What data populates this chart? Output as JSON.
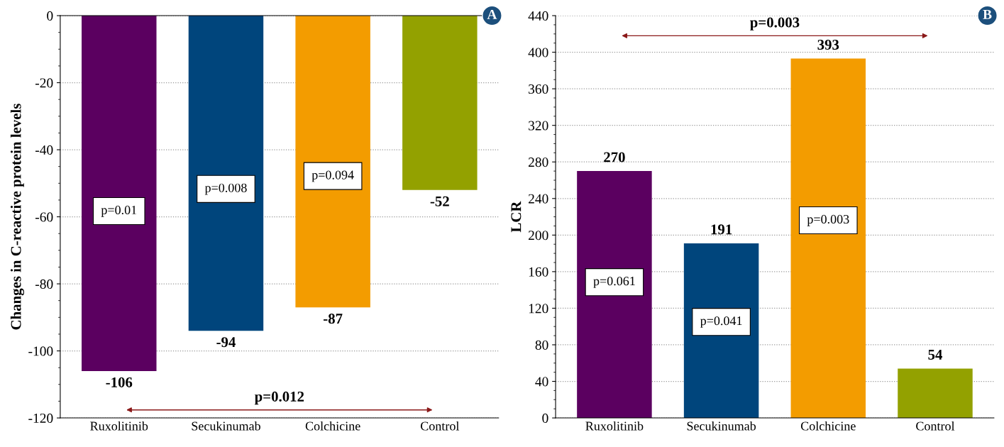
{
  "chart_data": [
    {
      "type": "bar",
      "ylabel": "Changes in C-reactive protein levels",
      "categories": [
        "Ruxolitinib",
        "Secukinumab",
        "Colchicine",
        "Control"
      ],
      "values": [
        -106,
        -94,
        -87,
        -52
      ],
      "colors": [
        "#5b0060",
        "#00457c",
        "#f39c00",
        "#93a100"
      ],
      "ylim": [
        -120,
        0
      ],
      "yticks": [
        -120,
        -100,
        -80,
        -60,
        -40,
        -20,
        0
      ],
      "grid": "y",
      "data_labels": true,
      "annotations": [
        "p=0.01",
        "p=0.008",
        "p=0.094",
        "p=0.012",
        "A"
      ]
    },
    {
      "type": "bar",
      "ylabel": "LCR",
      "categories": [
        "Ruxolitinib",
        "Secukinumab",
        "Colchicine",
        "Control"
      ],
      "values": [
        270,
        191,
        393,
        54
      ],
      "colors": [
        "#5b0060",
        "#00457c",
        "#f39c00",
        "#93a100"
      ],
      "ylim": [
        0,
        440
      ],
      "yticks": [
        0,
        40,
        80,
        120,
        160,
        200,
        240,
        280,
        320,
        360,
        400,
        440
      ],
      "grid": "y",
      "data_labels": true,
      "annotations": [
        "p=0.061",
        "p=0.041",
        "p=0.003",
        "p=0.003",
        "B"
      ]
    }
  ]
}
